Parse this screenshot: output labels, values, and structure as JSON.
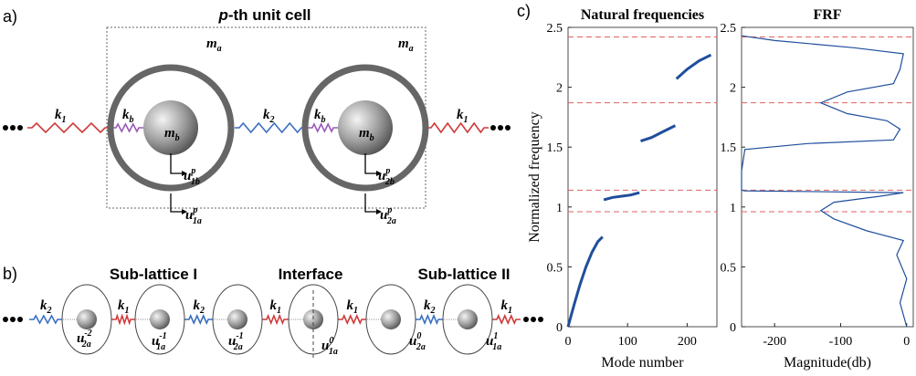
{
  "panel_a": {
    "label": "a)",
    "title": [
      "p",
      "-th unit cell"
    ],
    "labels": [
      {
        "main": "k",
        "sub": "1"
      },
      {
        "main": "k",
        "sub": "b"
      },
      {
        "main": "m",
        "sub": "a"
      },
      {
        "main": "m",
        "sub": "b"
      },
      {
        "main": "u",
        "sub": "1b",
        "sup": "p"
      },
      {
        "main": "u",
        "sub": "1a",
        "sup": "p"
      },
      {
        "main": "k",
        "sub": "2"
      },
      {
        "main": "k",
        "sub": "b"
      },
      {
        "main": "m",
        "sub": "a"
      },
      {
        "main": "m",
        "sub": "b"
      },
      {
        "main": "u",
        "sub": "2b",
        "sup": "p"
      },
      {
        "main": "u",
        "sub": "2a",
        "sup": "p"
      },
      {
        "main": "k",
        "sub": "1"
      }
    ]
  },
  "panel_b": {
    "label": "b)",
    "group_titles": [
      "Sub-lattice I",
      "Interface",
      "Sub-lattice II"
    ],
    "springs": [
      {
        "main": "k",
        "sub": "2"
      },
      {
        "main": "k",
        "sub": "1"
      },
      {
        "main": "k",
        "sub": "2"
      },
      {
        "main": "k",
        "sub": "1"
      },
      {
        "main": "k",
        "sub": "1"
      },
      {
        "main": "k",
        "sub": "2"
      },
      {
        "main": "k",
        "sub": "1"
      }
    ],
    "displacements": [
      {
        "main": "u",
        "sub": "2a",
        "sup": "-2"
      },
      {
        "main": "u",
        "sub": "1a",
        "sup": "-1"
      },
      {
        "main": "u",
        "sub": "2a",
        "sup": "-1"
      },
      {
        "main": "u",
        "sub": "1a",
        "sup": "0"
      },
      {
        "main": "u",
        "sub": "2a",
        "sup": "0"
      },
      {
        "main": "u",
        "sub": "1a",
        "sup": "1"
      }
    ]
  },
  "panel_c": {
    "label": "c)"
  },
  "chart_data": [
    {
      "type": "line",
      "title": "Natural frequencies",
      "xlabel": "Mode number",
      "ylabel": "Normalized frequency",
      "x": [
        0,
        10,
        20,
        30,
        40,
        50,
        58,
        59,
        60,
        75,
        90,
        105,
        120,
        121,
        122,
        140,
        160,
        180,
        181,
        182,
        200,
        220,
        240
      ],
      "values": [
        0,
        0.18,
        0.35,
        0.5,
        0.62,
        0.71,
        0.75,
        null,
        1.06,
        1.08,
        1.09,
        1.1,
        1.12,
        null,
        1.55,
        1.58,
        1.63,
        1.68,
        null,
        2.07,
        2.15,
        2.22,
        2.27
      ],
      "color": "#1f4e9c",
      "xlim": [
        0,
        250
      ],
      "xticks": [
        0,
        100,
        200
      ],
      "ylim": [
        0,
        2.5
      ],
      "yticks": [
        0,
        0.5,
        1,
        1.5,
        2,
        2.5
      ],
      "hlines": [
        0.96,
        1.14,
        1.87,
        2.42
      ],
      "hline_color": "#e06060"
    },
    {
      "type": "line",
      "title": "FRF",
      "xlabel": "Magnitude(db)",
      "x": [
        0,
        -10,
        0,
        -15,
        -5,
        -60,
        -110,
        -130,
        -110,
        -40,
        -5,
        -245,
        -250,
        -250,
        -245,
        -150,
        -20,
        -10,
        -30,
        -90,
        -130,
        -90,
        -20,
        -10,
        -5,
        -80,
        -200,
        -250
      ],
      "values": [
        0,
        0.2,
        0.4,
        0.6,
        0.72,
        0.8,
        0.9,
        0.97,
        1.04,
        1.09,
        1.12,
        1.135,
        1.14,
        1.3,
        1.48,
        1.53,
        1.56,
        1.65,
        1.72,
        1.78,
        1.87,
        1.96,
        2.03,
        2.15,
        2.28,
        2.33,
        2.39,
        2.43
      ],
      "color": "#1f4e9c",
      "xlim": [
        -250,
        10
      ],
      "xticks": [
        -200,
        -100,
        0
      ],
      "ylim": [
        0,
        2.5
      ],
      "yticks": [
        0,
        0.5,
        1,
        1.5,
        2,
        2.5
      ],
      "hlines": [
        0.96,
        1.14,
        1.87,
        2.42
      ],
      "hline_color": "#e06060"
    }
  ]
}
